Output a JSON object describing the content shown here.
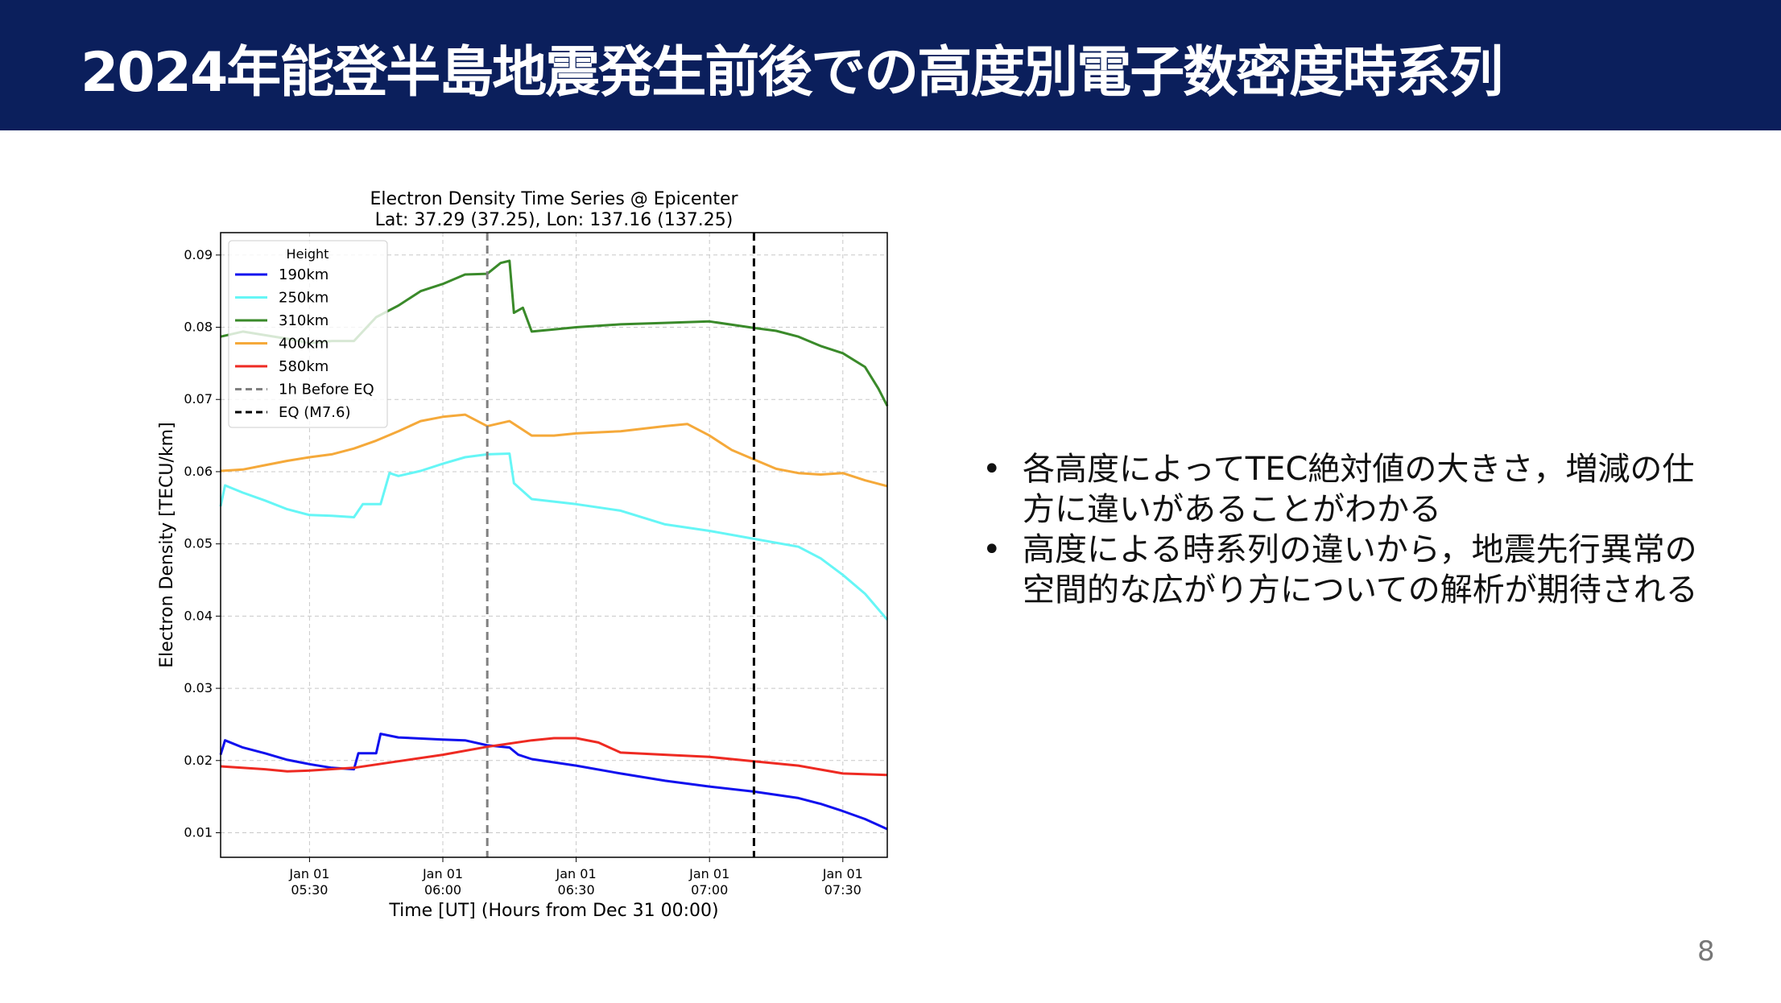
{
  "slide": {
    "title": "2024年能登半島地震発生前後での高度別電子数密度時系列",
    "page_number": "8",
    "header_color": "#0b1f5c",
    "bullets": [
      "各高度によってTEC絶対値の大きさ，増減の仕方に違いがあることがわかる",
      "高度による時系列の違いから，地震先行異常の空間的な広がり方についての解析が期待される"
    ]
  },
  "chart_data": {
    "type": "line",
    "title": "Electron Density Time Series @ Epicenter",
    "subtitle": "Lat: 37.29 (37.25), Lon: 137.16 (137.25)",
    "xlabel": "Time [UT] (Hours from Dec 31 00:00)",
    "ylabel": "Electron Density [TECU/km]",
    "xlim": [
      "05:10",
      "07:40"
    ],
    "ylim": [
      0.0066,
      0.0931
    ],
    "xticks": [
      {
        "time": "05:30",
        "label1": "Jan 01",
        "label2": "05:30"
      },
      {
        "time": "06:00",
        "label1": "Jan 01",
        "label2": "06:00"
      },
      {
        "time": "06:30",
        "label1": "Jan 01",
        "label2": "06:30"
      },
      {
        "time": "07:00",
        "label1": "Jan 01",
        "label2": "07:00"
      },
      {
        "time": "07:30",
        "label1": "Jan 01",
        "label2": "07:30"
      }
    ],
    "yticks": [
      "0.01",
      "0.02",
      "0.03",
      "0.04",
      "0.05",
      "0.06",
      "0.07",
      "0.08",
      "0.09"
    ],
    "grid": true,
    "legend": {
      "title": "Height",
      "placement": "top-left"
    },
    "series": [
      {
        "name": "190km",
        "color": "#1010ee",
        "points": [
          [
            "05:10",
            0.0208
          ],
          [
            "05:11",
            0.0228
          ],
          [
            "05:15",
            0.0218
          ],
          [
            "05:20",
            0.021
          ],
          [
            "05:25",
            0.0201
          ],
          [
            "05:30",
            0.0195
          ],
          [
            "05:35",
            0.019
          ],
          [
            "05:40",
            0.0188
          ],
          [
            "05:41",
            0.021
          ],
          [
            "05:45",
            0.021
          ],
          [
            "05:46",
            0.0237
          ],
          [
            "05:50",
            0.0232
          ],
          [
            "06:00",
            0.0229
          ],
          [
            "06:05",
            0.0228
          ],
          [
            "06:10",
            0.0221
          ],
          [
            "06:15",
            0.0218
          ],
          [
            "06:17",
            0.0208
          ],
          [
            "06:20",
            0.0202
          ],
          [
            "06:30",
            0.0193
          ],
          [
            "06:40",
            0.0182
          ],
          [
            "06:50",
            0.0172
          ],
          [
            "07:00",
            0.0164
          ],
          [
            "07:10",
            0.0157
          ],
          [
            "07:20",
            0.0148
          ],
          [
            "07:25",
            0.014
          ],
          [
            "07:30",
            0.013
          ],
          [
            "07:35",
            0.0119
          ],
          [
            "07:40",
            0.0105
          ]
        ]
      },
      {
        "name": "250km",
        "color": "#66f6f6",
        "points": [
          [
            "05:10",
            0.0552
          ],
          [
            "05:11",
            0.0581
          ],
          [
            "05:15",
            0.0571
          ],
          [
            "05:20",
            0.056
          ],
          [
            "05:25",
            0.0548
          ],
          [
            "05:30",
            0.054
          ],
          [
            "05:35",
            0.0539
          ],
          [
            "05:40",
            0.0537
          ],
          [
            "05:42",
            0.0555
          ],
          [
            "05:46",
            0.0555
          ],
          [
            "05:48",
            0.0598
          ],
          [
            "05:50",
            0.0594
          ],
          [
            "05:55",
            0.0601
          ],
          [
            "06:00",
            0.0611
          ],
          [
            "06:05",
            0.062
          ],
          [
            "06:10",
            0.0624
          ],
          [
            "06:15",
            0.0625
          ],
          [
            "06:16",
            0.0584
          ],
          [
            "06:20",
            0.0562
          ],
          [
            "06:30",
            0.0555
          ],
          [
            "06:40",
            0.0546
          ],
          [
            "06:50",
            0.0527
          ],
          [
            "07:00",
            0.0518
          ],
          [
            "07:10",
            0.0507
          ],
          [
            "07:20",
            0.0496
          ],
          [
            "07:25",
            0.048
          ],
          [
            "07:30",
            0.0457
          ],
          [
            "07:35",
            0.0431
          ],
          [
            "07:40",
            0.0395
          ]
        ]
      },
      {
        "name": "310km",
        "color": "#3a8a2a",
        "points": [
          [
            "05:10",
            0.0787
          ],
          [
            "05:15",
            0.0794
          ],
          [
            "05:20",
            0.0789
          ],
          [
            "05:25",
            0.0784
          ],
          [
            "05:30",
            0.0778
          ],
          [
            "05:35",
            0.0781
          ],
          [
            "05:40",
            0.0781
          ],
          [
            "05:45",
            0.0814
          ],
          [
            "05:50",
            0.083
          ],
          [
            "05:55",
            0.085
          ],
          [
            "06:00",
            0.086
          ],
          [
            "06:05",
            0.0873
          ],
          [
            "06:10",
            0.0874
          ],
          [
            "06:13",
            0.0889
          ],
          [
            "06:15",
            0.0892
          ],
          [
            "06:16",
            0.082
          ],
          [
            "06:18",
            0.0827
          ],
          [
            "06:20",
            0.0794
          ],
          [
            "06:25",
            0.0797
          ],
          [
            "06:30",
            0.08
          ],
          [
            "06:40",
            0.0804
          ],
          [
            "06:50",
            0.0806
          ],
          [
            "07:00",
            0.0808
          ],
          [
            "07:10",
            0.0799
          ],
          [
            "07:15",
            0.0795
          ],
          [
            "07:20",
            0.0787
          ],
          [
            "07:25",
            0.0774
          ],
          [
            "07:30",
            0.0764
          ],
          [
            "07:35",
            0.0745
          ],
          [
            "07:38",
            0.0715
          ],
          [
            "07:40",
            0.0691
          ]
        ]
      },
      {
        "name": "400km",
        "color": "#f5a93a",
        "points": [
          [
            "05:10",
            0.0601
          ],
          [
            "05:15",
            0.0603
          ],
          [
            "05:20",
            0.0609
          ],
          [
            "05:25",
            0.0615
          ],
          [
            "05:30",
            0.062
          ],
          [
            "05:35",
            0.0624
          ],
          [
            "05:40",
            0.0632
          ],
          [
            "05:45",
            0.0643
          ],
          [
            "05:50",
            0.0656
          ],
          [
            "05:55",
            0.067
          ],
          [
            "06:00",
            0.0676
          ],
          [
            "06:05",
            0.0679
          ],
          [
            "06:10",
            0.0663
          ],
          [
            "06:15",
            0.067
          ],
          [
            "06:20",
            0.065
          ],
          [
            "06:25",
            0.065
          ],
          [
            "06:30",
            0.0653
          ],
          [
            "06:40",
            0.0656
          ],
          [
            "06:50",
            0.0663
          ],
          [
            "06:55",
            0.0666
          ],
          [
            "07:00",
            0.065
          ],
          [
            "07:05",
            0.063
          ],
          [
            "07:10",
            0.0617
          ],
          [
            "07:15",
            0.0604
          ],
          [
            "07:20",
            0.0598
          ],
          [
            "07:25",
            0.0596
          ],
          [
            "07:30",
            0.0598
          ],
          [
            "07:35",
            0.0588
          ],
          [
            "07:40",
            0.058
          ]
        ]
      },
      {
        "name": "580km",
        "color": "#ee2a22",
        "points": [
          [
            "05:10",
            0.0192
          ],
          [
            "05:20",
            0.0188
          ],
          [
            "05:25",
            0.0185
          ],
          [
            "05:30",
            0.0186
          ],
          [
            "05:40",
            0.019
          ],
          [
            "05:50",
            0.0199
          ],
          [
            "06:00",
            0.0208
          ],
          [
            "06:10",
            0.0219
          ],
          [
            "06:20",
            0.0228
          ],
          [
            "06:25",
            0.0231
          ],
          [
            "06:30",
            0.0231
          ],
          [
            "06:35",
            0.0225
          ],
          [
            "06:40",
            0.0211
          ],
          [
            "06:50",
            0.0208
          ],
          [
            "07:00",
            0.0205
          ],
          [
            "07:10",
            0.0199
          ],
          [
            "07:20",
            0.0193
          ],
          [
            "07:30",
            0.0182
          ],
          [
            "07:40",
            0.018
          ]
        ]
      }
    ],
    "vlines": [
      {
        "name": "1h Before EQ",
        "time": "06:10",
        "color": "#808080"
      },
      {
        "name": "EQ (M7.6)",
        "time": "07:10",
        "color": "#000000"
      }
    ]
  }
}
